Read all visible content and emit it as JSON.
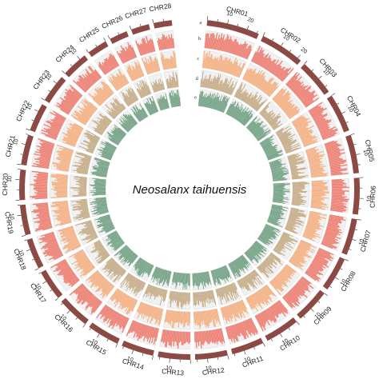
{
  "title": "Neosalanx taihuensis",
  "track_letters": [
    "a",
    "b",
    "c",
    "d",
    "e"
  ],
  "colors": {
    "ideogram": "#8c4a44",
    "ticks": "#444444",
    "track_b": "#ee8074",
    "track_c": "#f5b184",
    "track_d": "#c5ac86",
    "track_e": "#6fa082",
    "track_bg": "#f1f1f1",
    "track_border": "#dcdcdc"
  },
  "chromosomes": [
    {
      "name": "CHR01",
      "length": 26,
      "tick_labels": [
        "10",
        "20"
      ]
    },
    {
      "name": "CHR02",
      "length": 22,
      "tick_labels": [
        "10",
        "20"
      ]
    },
    {
      "name": "CHR03",
      "length": 18,
      "tick_labels": [
        "10"
      ]
    },
    {
      "name": "CHR04",
      "length": 19,
      "tick_labels": [
        "10"
      ]
    },
    {
      "name": "CHR05",
      "length": 19,
      "tick_labels": [
        "10"
      ]
    },
    {
      "name": "CHR06",
      "length": 18,
      "tick_labels": [
        "10"
      ]
    },
    {
      "name": "CHR07",
      "length": 18,
      "tick_labels": [
        "10"
      ]
    },
    {
      "name": "CHR08",
      "length": 17,
      "tick_labels": [
        "10"
      ]
    },
    {
      "name": "CHR09",
      "length": 17,
      "tick_labels": [
        "10"
      ]
    },
    {
      "name": "CHR10",
      "length": 17,
      "tick_labels": [
        "10"
      ]
    },
    {
      "name": "CHR11",
      "length": 16,
      "tick_labels": [
        "10"
      ]
    },
    {
      "name": "CHR12",
      "length": 16,
      "tick_labels": [
        "10"
      ]
    },
    {
      "name": "CHR13",
      "length": 16,
      "tick_labels": [
        "10"
      ]
    },
    {
      "name": "CHR14",
      "length": 16,
      "tick_labels": [
        "10"
      ]
    },
    {
      "name": "CHR15",
      "length": 16,
      "tick_labels": [
        "10"
      ]
    },
    {
      "name": "CHR16",
      "length": 16,
      "tick_labels": [
        "10"
      ]
    },
    {
      "name": "CHR17",
      "length": 15,
      "tick_labels": [
        "10"
      ]
    },
    {
      "name": "CHR18",
      "length": 15,
      "tick_labels": [
        "10"
      ]
    },
    {
      "name": "CHR19",
      "length": 15,
      "tick_labels": [
        "10"
      ]
    },
    {
      "name": "CHR20",
      "length": 15,
      "tick_labels": [
        "10"
      ]
    },
    {
      "name": "CHR21",
      "length": 15,
      "tick_labels": [
        "10"
      ]
    },
    {
      "name": "CHR22",
      "length": 14,
      "tick_labels": [
        "10"
      ]
    },
    {
      "name": "CHR23",
      "length": 14,
      "tick_labels": [
        "10"
      ]
    },
    {
      "name": "CHR24",
      "length": 13,
      "tick_labels": [
        "10"
      ]
    },
    {
      "name": "CHR25",
      "length": 10,
      "tick_labels": []
    },
    {
      "name": "CHR26",
      "length": 9,
      "tick_labels": []
    },
    {
      "name": "CHR27",
      "length": 9,
      "tick_labels": []
    },
    {
      "name": "CHR28",
      "length": 9,
      "tick_labels": []
    }
  ]
}
